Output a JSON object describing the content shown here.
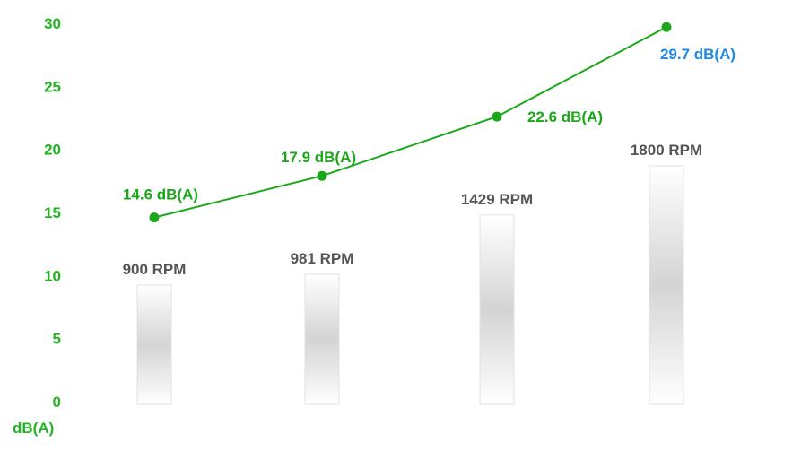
{
  "chart_data": {
    "type": "line",
    "ylabel": "dB(A)",
    "ylim": [
      0,
      30
    ],
    "yticks": [
      0,
      5,
      10,
      15,
      20,
      25,
      30
    ],
    "grid": false,
    "colors": {
      "line": "#1aa81a",
      "tick": "#22b422",
      "rpm_label": "#555555",
      "highlight_label": "#1e88e5"
    },
    "points": [
      {
        "rpm": 900,
        "rpm_label": "900 RPM",
        "db": 14.6,
        "db_label": "14.6 dB(A)",
        "bar_value": 900
      },
      {
        "rpm": 981,
        "rpm_label": "981 RPM",
        "db": 17.9,
        "db_label": "17.9 dB(A)",
        "bar_value": 981
      },
      {
        "rpm": 1429,
        "rpm_label": "1429 RPM",
        "db": 22.6,
        "db_label": "22.6 dB(A)",
        "bar_value": 1429
      },
      {
        "rpm": 1800,
        "rpm_label": "1800 RPM",
        "db": 29.7,
        "db_label": "29.7 dB(A)",
        "bar_value": 1800,
        "highlight": true
      }
    ],
    "bar_max": 1800
  }
}
